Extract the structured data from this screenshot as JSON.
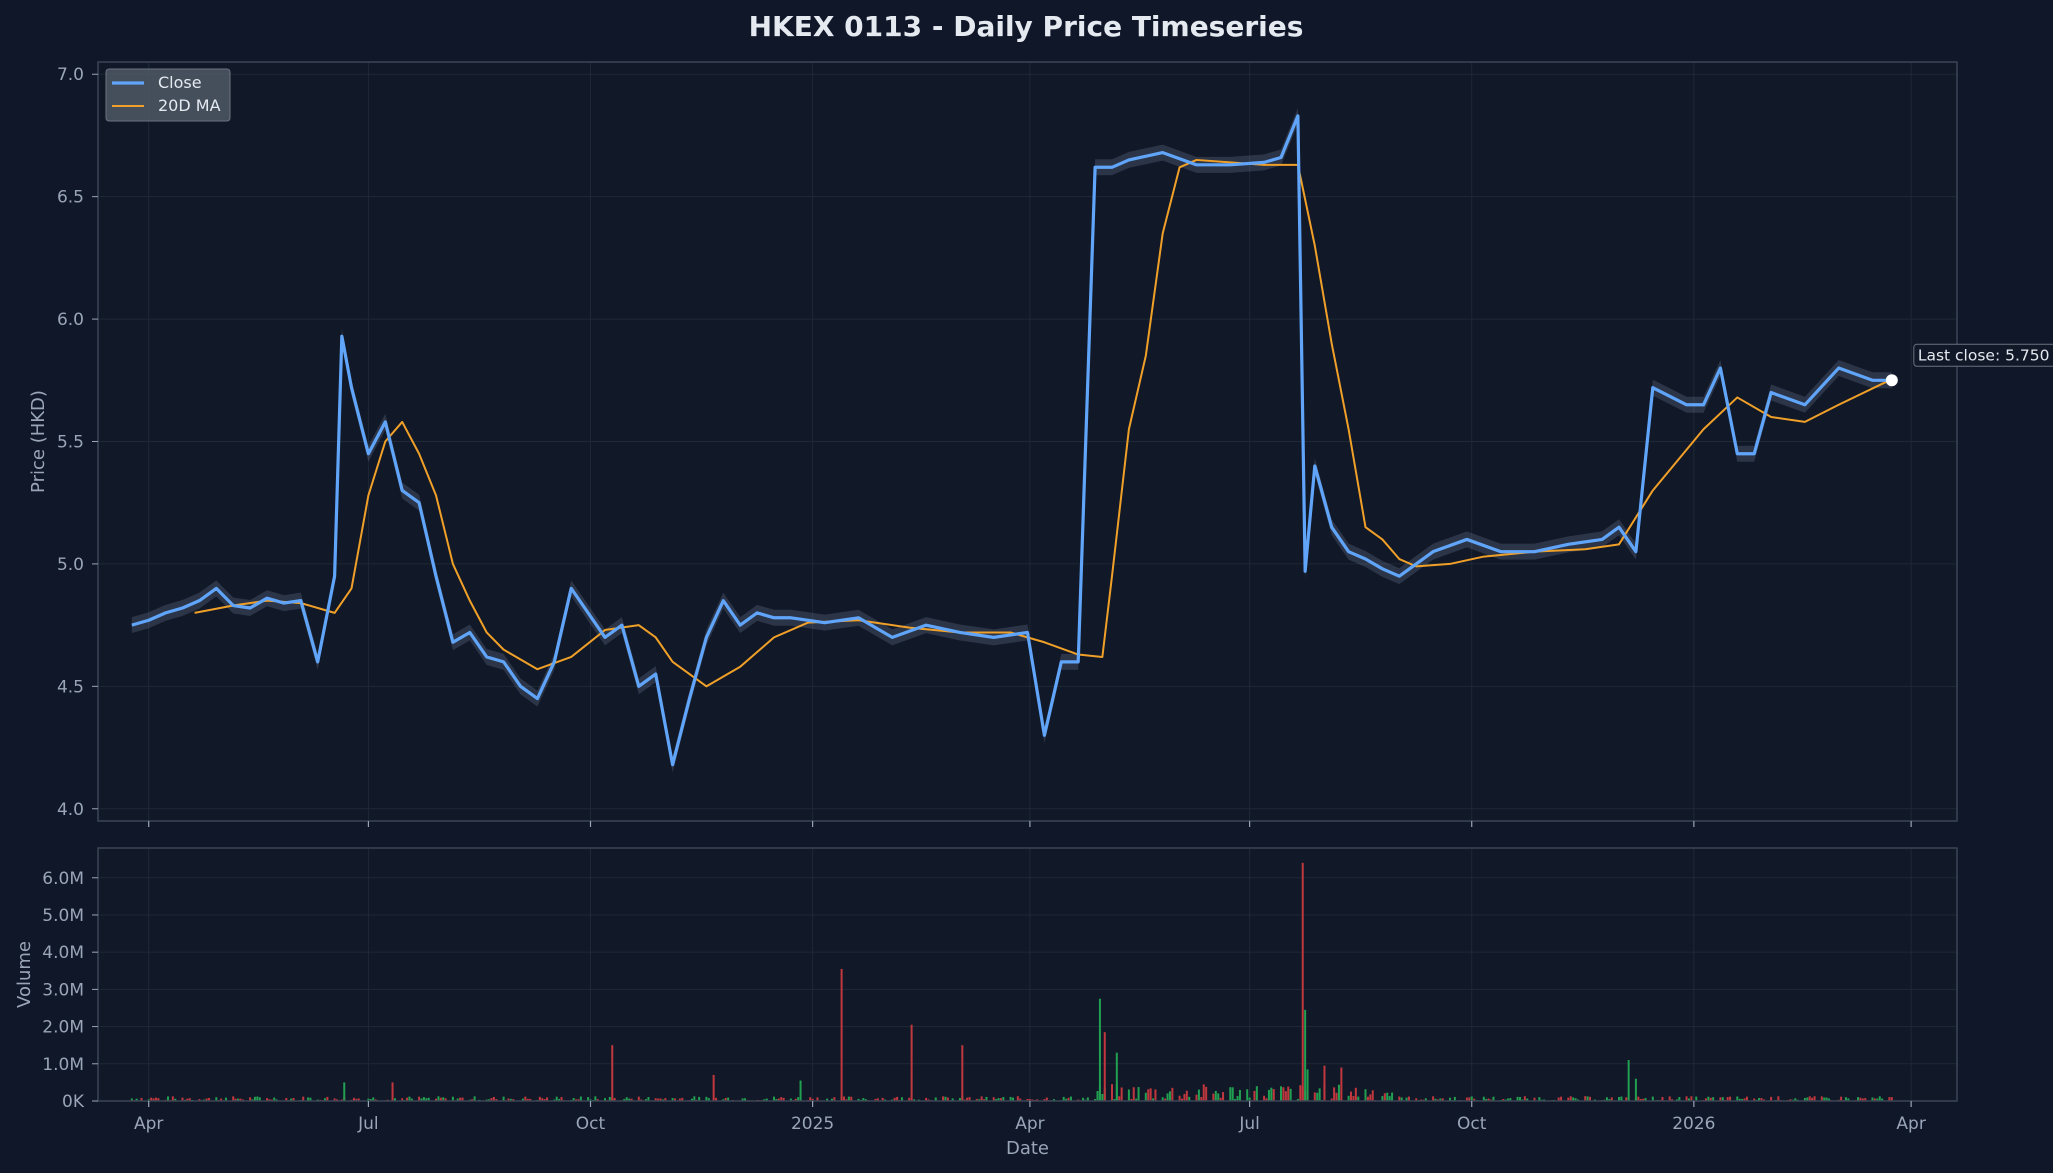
{
  "title": "HKEX 0113 - Daily Price Timeseries",
  "colors": {
    "background": "#0f1729",
    "panel": "#111827",
    "frame": "#3a4556",
    "grid": "#1f2937",
    "tick_text": "#9aa5b8",
    "label_text": "#9aa5b8",
    "title_text": "#e5e9f0",
    "close": "#60a5fa",
    "ma": "#f0a028",
    "band": "#7b8aa6",
    "volume_up": "#22a052",
    "volume_down": "#c0383e"
  },
  "chart_data": [
    {
      "id": "price",
      "type": "line",
      "ylabel": "Price (HKD)",
      "ylim": [
        3.95,
        7.05
      ],
      "yticks": [
        4.0,
        4.5,
        5.0,
        5.5,
        6.0,
        6.5,
        7.0
      ],
      "ytick_labels": [
        "4.0",
        "4.5",
        "5.0",
        "5.5",
        "6.0",
        "6.5",
        "7.0"
      ],
      "xlim": [
        "2024-03-11",
        "2026-04-20"
      ],
      "legend": {
        "placement": "upper-left",
        "entries": [
          "Close",
          "20D MA"
        ]
      },
      "grid": true,
      "annotation": "Last close: 5.750",
      "last_point": {
        "date": "2026-03-24",
        "value": 5.75
      },
      "series": [
        {
          "name": "Close",
          "x": [
            "2024-03-25",
            "2024-04-01",
            "2024-04-08",
            "2024-04-15",
            "2024-04-22",
            "2024-04-29",
            "2024-05-06",
            "2024-05-13",
            "2024-05-20",
            "2024-05-27",
            "2024-06-03",
            "2024-06-10",
            "2024-06-17",
            "2024-06-20",
            "2024-06-24",
            "2024-07-01",
            "2024-07-08",
            "2024-07-15",
            "2024-07-22",
            "2024-07-29",
            "2024-08-05",
            "2024-08-12",
            "2024-08-19",
            "2024-08-26",
            "2024-09-02",
            "2024-09-09",
            "2024-09-16",
            "2024-09-23",
            "2024-09-30",
            "2024-10-07",
            "2024-10-14",
            "2024-10-21",
            "2024-10-28",
            "2024-11-04",
            "2024-11-11",
            "2024-11-18",
            "2024-11-25",
            "2024-12-02",
            "2024-12-09",
            "2024-12-16",
            "2024-12-23",
            "2025-01-06",
            "2025-01-20",
            "2025-02-03",
            "2025-02-17",
            "2025-03-03",
            "2025-03-17",
            "2025-03-31",
            "2025-04-07",
            "2025-04-14",
            "2025-04-21",
            "2025-04-28",
            "2025-05-05",
            "2025-05-12",
            "2025-05-26",
            "2025-06-09",
            "2025-06-23",
            "2025-07-07",
            "2025-07-14",
            "2025-07-21",
            "2025-07-24",
            "2025-07-28",
            "2025-08-04",
            "2025-08-11",
            "2025-08-18",
            "2025-08-25",
            "2025-09-01",
            "2025-09-15",
            "2025-09-29",
            "2025-10-13",
            "2025-10-27",
            "2025-11-10",
            "2025-11-24",
            "2025-12-01",
            "2025-12-08",
            "2025-12-15",
            "2025-12-29",
            "2026-01-05",
            "2026-01-12",
            "2026-01-19",
            "2026-01-26",
            "2026-02-02",
            "2026-02-16",
            "2026-03-02",
            "2026-03-16",
            "2026-03-20",
            "2026-03-24"
          ],
          "values": [
            4.75,
            4.77,
            4.8,
            4.82,
            4.85,
            4.9,
            4.83,
            4.82,
            4.86,
            4.84,
            4.85,
            4.6,
            4.95,
            5.93,
            5.72,
            5.45,
            5.58,
            5.3,
            5.25,
            4.95,
            4.68,
            4.72,
            4.62,
            4.6,
            4.5,
            4.45,
            4.6,
            4.9,
            4.8,
            4.7,
            4.75,
            4.5,
            4.55,
            4.18,
            4.45,
            4.7,
            4.85,
            4.75,
            4.8,
            4.78,
            4.78,
            4.76,
            4.78,
            4.7,
            4.75,
            4.72,
            4.7,
            4.72,
            4.3,
            4.6,
            4.6,
            6.62,
            6.62,
            6.65,
            6.68,
            6.63,
            6.63,
            6.64,
            6.66,
            6.83,
            4.97,
            5.4,
            5.15,
            5.05,
            5.02,
            4.98,
            4.95,
            5.05,
            5.1,
            5.05,
            5.05,
            5.08,
            5.1,
            5.15,
            5.05,
            5.72,
            5.65,
            5.65,
            5.8,
            5.45,
            5.45,
            5.7,
            5.65,
            5.8,
            5.75,
            5.75,
            5.75
          ]
        },
        {
          "name": "20D MA",
          "x": [
            "2024-04-20",
            "2024-05-06",
            "2024-05-20",
            "2024-06-03",
            "2024-06-17",
            "2024-06-24",
            "2024-07-01",
            "2024-07-08",
            "2024-07-15",
            "2024-07-22",
            "2024-07-29",
            "2024-08-05",
            "2024-08-12",
            "2024-08-19",
            "2024-08-26",
            "2024-09-09",
            "2024-09-23",
            "2024-10-07",
            "2024-10-21",
            "2024-10-28",
            "2024-11-04",
            "2024-11-18",
            "2024-12-02",
            "2024-12-16",
            "2024-12-30",
            "2025-01-20",
            "2025-02-10",
            "2025-03-03",
            "2025-03-24",
            "2025-04-07",
            "2025-04-21",
            "2025-05-01",
            "2025-05-05",
            "2025-05-12",
            "2025-05-19",
            "2025-05-26",
            "2025-06-02",
            "2025-06-09",
            "2025-06-23",
            "2025-07-07",
            "2025-07-21",
            "2025-07-28",
            "2025-08-04",
            "2025-08-11",
            "2025-08-18",
            "2025-08-25",
            "2025-09-01",
            "2025-09-08",
            "2025-09-22",
            "2025-10-06",
            "2025-10-27",
            "2025-11-17",
            "2025-12-01",
            "2025-12-15",
            "2026-01-05",
            "2026-01-19",
            "2026-02-02",
            "2026-02-16",
            "2026-03-02",
            "2026-03-23"
          ],
          "values": [
            4.8,
            4.83,
            4.85,
            4.84,
            4.8,
            4.9,
            5.28,
            5.5,
            5.58,
            5.45,
            5.28,
            5.0,
            4.85,
            4.72,
            4.65,
            4.57,
            4.62,
            4.73,
            4.75,
            4.7,
            4.6,
            4.5,
            4.58,
            4.7,
            4.76,
            4.77,
            4.74,
            4.72,
            4.72,
            4.68,
            4.63,
            4.62,
            4.95,
            5.55,
            5.85,
            6.35,
            6.62,
            6.65,
            6.64,
            6.63,
            6.63,
            6.3,
            5.9,
            5.55,
            5.15,
            5.1,
            5.02,
            4.99,
            5.0,
            5.03,
            5.05,
            5.06,
            5.08,
            5.3,
            5.55,
            5.68,
            5.6,
            5.58,
            5.65,
            5.75
          ]
        }
      ]
    },
    {
      "id": "volume",
      "type": "bar",
      "xlabel": "Date",
      "ylabel": "Volume",
      "ylim": [
        0,
        6.8
      ],
      "yticks": [
        0,
        1,
        2,
        3,
        4,
        5,
        6
      ],
      "ytick_labels": [
        "0K",
        "1.0M",
        "2.0M",
        "3.0M",
        "4.0M",
        "5.0M",
        "6.0M"
      ],
      "grid": true,
      "bars": [
        {
          "date": "2024-06-21",
          "value": 0.5,
          "dir": "up"
        },
        {
          "date": "2024-07-11",
          "value": 0.5,
          "dir": "down"
        },
        {
          "date": "2024-10-10",
          "value": 1.5,
          "dir": "down"
        },
        {
          "date": "2024-11-21",
          "value": 0.7,
          "dir": "down"
        },
        {
          "date": "2024-12-27",
          "value": 0.55,
          "dir": "up"
        },
        {
          "date": "2025-01-13",
          "value": 3.55,
          "dir": "down"
        },
        {
          "date": "2025-02-11",
          "value": 2.05,
          "dir": "down"
        },
        {
          "date": "2025-03-04",
          "value": 1.5,
          "dir": "down"
        },
        {
          "date": "2025-04-30",
          "value": 2.75,
          "dir": "up"
        },
        {
          "date": "2025-05-02",
          "value": 1.85,
          "dir": "down"
        },
        {
          "date": "2025-05-07",
          "value": 1.3,
          "dir": "up"
        },
        {
          "date": "2025-07-23",
          "value": 6.4,
          "dir": "down"
        },
        {
          "date": "2025-07-24",
          "value": 2.45,
          "dir": "up"
        },
        {
          "date": "2025-07-25",
          "value": 0.85,
          "dir": "up"
        },
        {
          "date": "2025-08-01",
          "value": 0.95,
          "dir": "down"
        },
        {
          "date": "2025-08-08",
          "value": 0.9,
          "dir": "down"
        },
        {
          "date": "2025-12-05",
          "value": 1.1,
          "dir": "up"
        },
        {
          "date": "2025-12-08",
          "value": 0.6,
          "dir": "up"
        }
      ]
    }
  ],
  "x_axis": {
    "ticks": [
      "2024-04-01",
      "2024-07-01",
      "2024-10-01",
      "2025-01-01",
      "2025-04-01",
      "2025-07-01",
      "2025-10-01",
      "2026-01-01",
      "2026-04-01"
    ],
    "labels": [
      "Apr",
      "Jul",
      "Oct",
      "2025",
      "Apr",
      "Jul",
      "Oct",
      "2026",
      "Apr"
    ]
  }
}
